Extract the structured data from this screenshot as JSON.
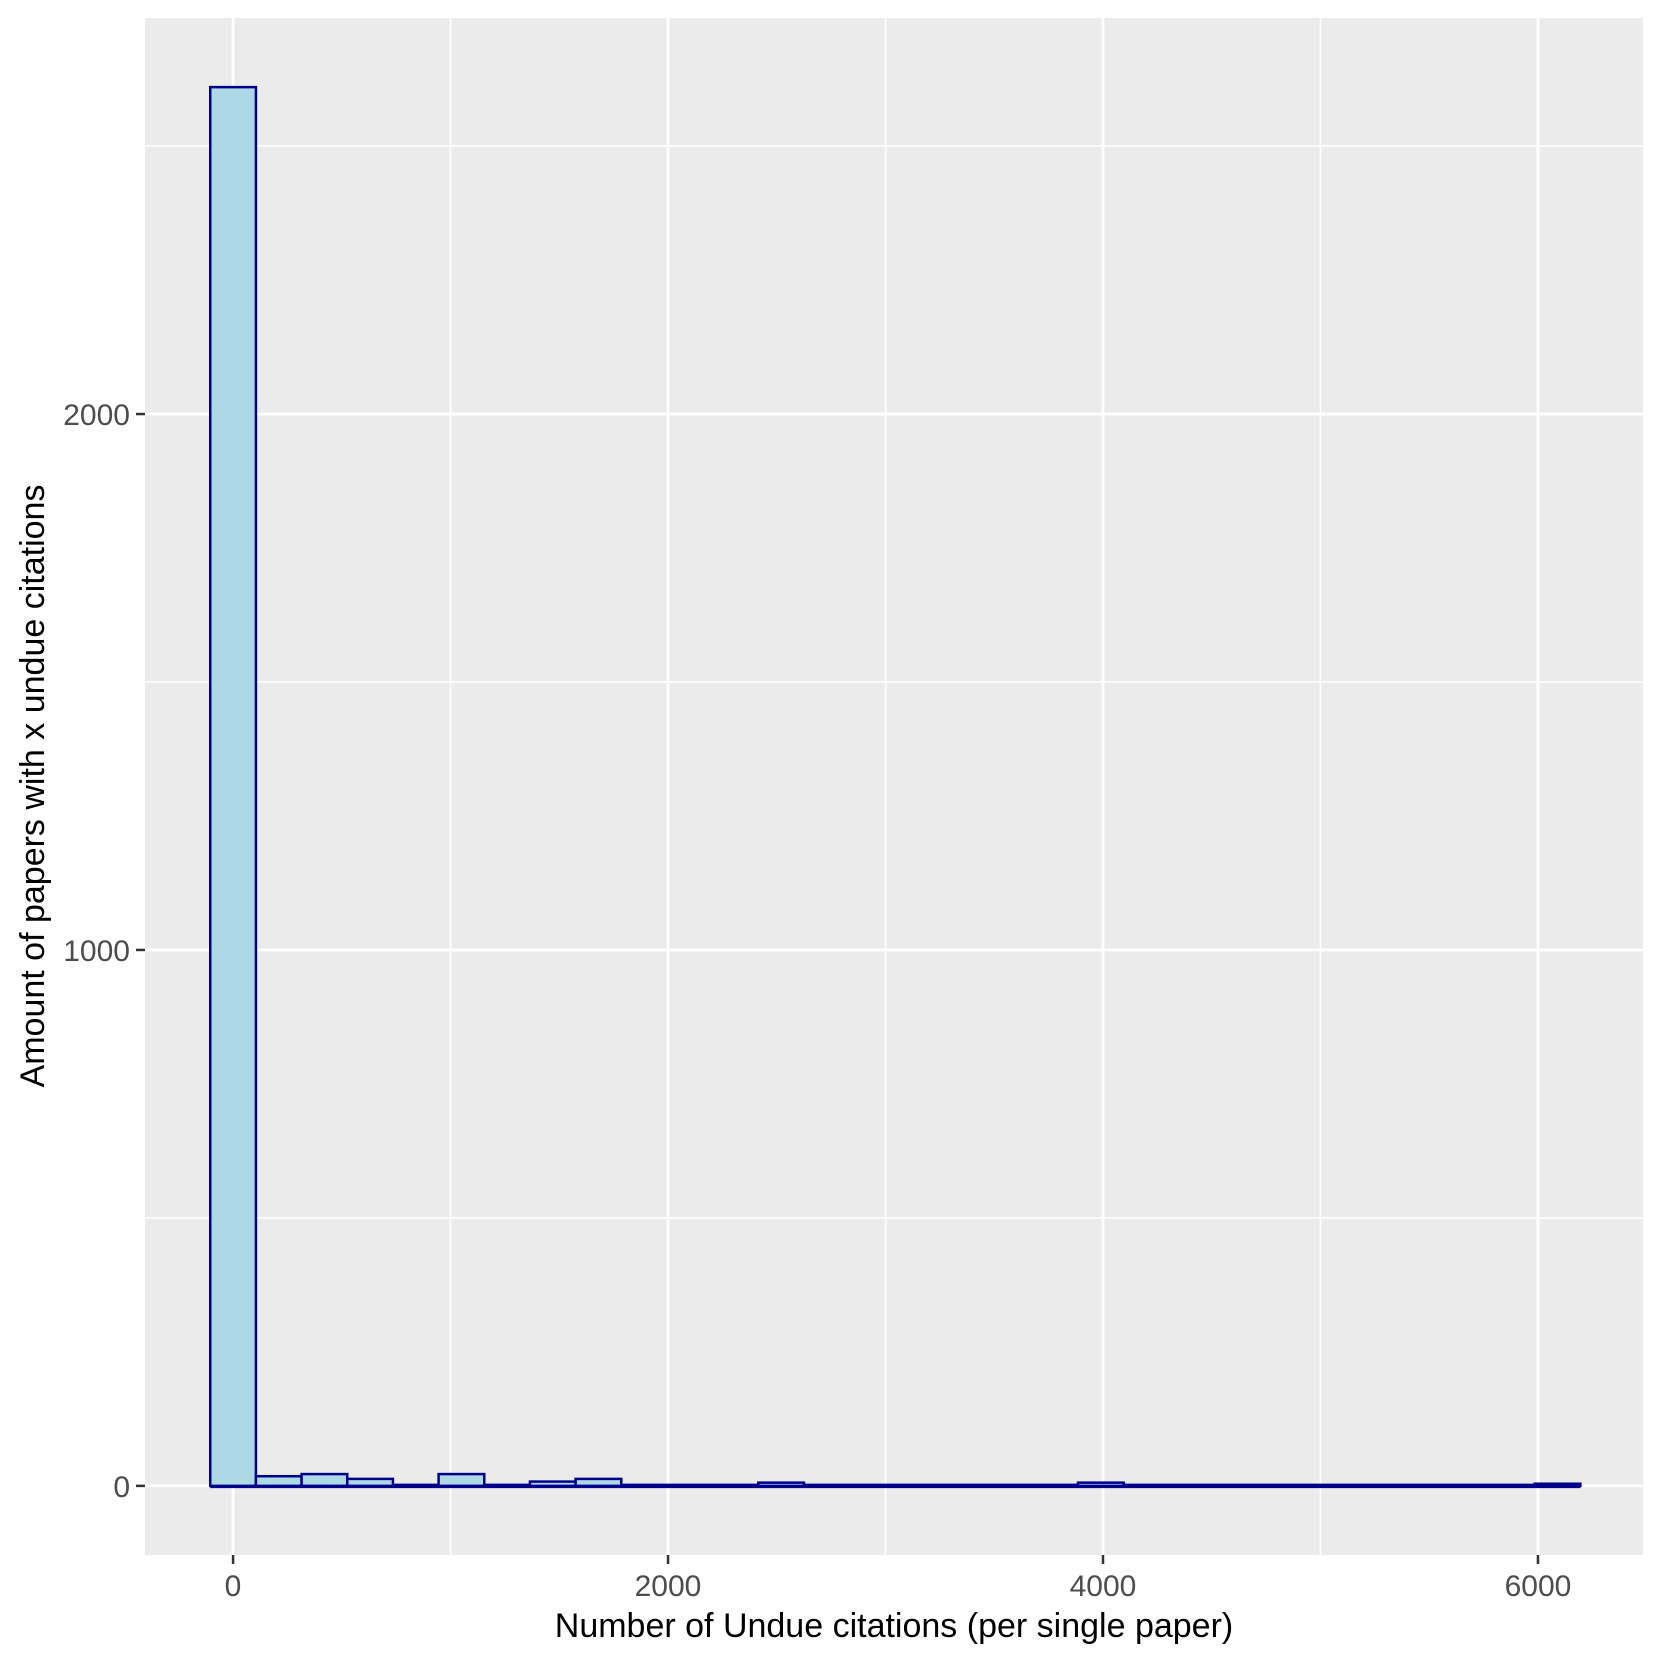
{
  "chart_data": {
    "type": "bar",
    "subtype": "histogram",
    "title": "",
    "xlabel": "Number of Undue citations (per single paper)",
    "ylabel": "Amount of papers with x undue citations",
    "x_tick_labels": [
      "0",
      "2000",
      "4000",
      "6000"
    ],
    "x_tick_values": [
      0,
      2000,
      4000,
      6000
    ],
    "y_tick_labels": [
      "0",
      "1000",
      "2000"
    ],
    "y_tick_values": [
      0,
      1000,
      2000
    ],
    "x_minor_values": [
      1000,
      3000,
      5000
    ],
    "y_minor_values": [
      500,
      1500,
      2500
    ],
    "xlim": [
      -405,
      6483
    ],
    "ylim": [
      -129,
      2739
    ],
    "binwidth": 210,
    "bins": [
      {
        "center": 0,
        "count": 2610
      },
      {
        "center": 210,
        "count": 18
      },
      {
        "center": 420,
        "count": 22
      },
      {
        "center": 630,
        "count": 13
      },
      {
        "center": 840,
        "count": 0
      },
      {
        "center": 1050,
        "count": 22
      },
      {
        "center": 1260,
        "count": 0
      },
      {
        "center": 1470,
        "count": 8
      },
      {
        "center": 1680,
        "count": 13
      },
      {
        "center": 1890,
        "count": 0
      },
      {
        "center": 2100,
        "count": 0
      },
      {
        "center": 2310,
        "count": 0
      },
      {
        "center": 2520,
        "count": 6
      },
      {
        "center": 2730,
        "count": 0
      },
      {
        "center": 2940,
        "count": 0
      },
      {
        "center": 3150,
        "count": 0
      },
      {
        "center": 3360,
        "count": 0
      },
      {
        "center": 3570,
        "count": 0
      },
      {
        "center": 3780,
        "count": 0
      },
      {
        "center": 3990,
        "count": 6
      },
      {
        "center": 4200,
        "count": 0
      },
      {
        "center": 4410,
        "count": 0
      },
      {
        "center": 4620,
        "count": 0
      },
      {
        "center": 4830,
        "count": 0
      },
      {
        "center": 5040,
        "count": 0
      },
      {
        "center": 5250,
        "count": 0
      },
      {
        "center": 5460,
        "count": 0
      },
      {
        "center": 5670,
        "count": 0
      },
      {
        "center": 5880,
        "count": 0
      },
      {
        "center": 6090,
        "count": 4
      }
    ],
    "legend": "none",
    "grid": "on",
    "colors": {
      "bar_fill": "#ADD8E6",
      "bar_stroke": "#00008B",
      "panel_bg": "#EBEBEB",
      "grid": "#FFFFFF",
      "tick_mark": "#333333",
      "tick_label": "#4D4D4D",
      "axis_title": "#000000",
      "figure_bg": "#FFFFFF"
    }
  }
}
